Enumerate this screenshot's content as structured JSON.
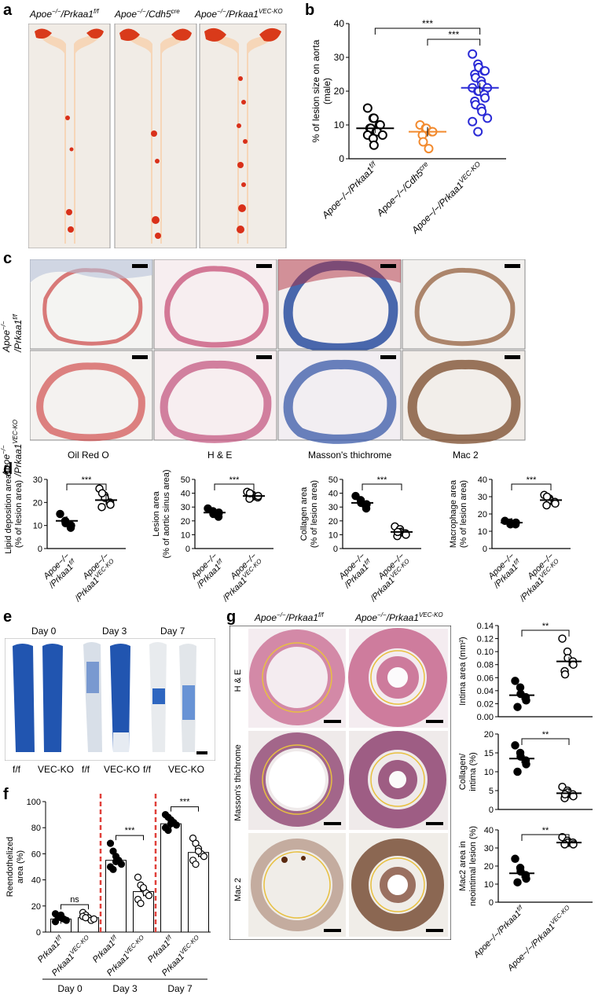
{
  "panel_labels": [
    "a",
    "b",
    "c",
    "d",
    "e",
    "f",
    "g"
  ],
  "a": {
    "captions": [
      {
        "pre": "Apoe",
        "sup": "−/−",
        "mid": "/Prkaa1",
        "sup2": "f/f"
      },
      {
        "pre": "Apoe",
        "sup": "−/−",
        "mid": "/Cdh5",
        "sup2": "cre"
      },
      {
        "pre": "Apoe",
        "sup": "−/−",
        "mid": "/Prkaa1",
        "sup2": "VEC-KO"
      }
    ]
  },
  "c": {
    "row_labels": [
      {
        "pre": "Apoe",
        "sup": "−/−",
        "line2": "/Prkaa1",
        "sup2": "f/f"
      },
      {
        "pre": "Apoe",
        "sup": "−/−",
        "line2": "/Prkaa1",
        "sup2": "VEC-KO"
      }
    ],
    "col_labels": [
      "Oil Red O",
      "H & E",
      "Masson's thichrome",
      "Mac 2"
    ]
  },
  "e": {
    "day_labels": [
      "Day 0",
      "Day 3",
      "Day 7"
    ],
    "genotype_labels": [
      "f/f",
      "VEC-KO",
      "f/f",
      "VEC-KO",
      "f/f",
      "VEC-KO"
    ]
  },
  "g": {
    "col_labels": [
      {
        "pre": "Apoe",
        "sup": "−/−",
        "mid": "/Prkaa1",
        "sup2": "f/f"
      },
      {
        "pre": "Apoe",
        "sup": "−/−",
        "mid": "/Prkaa1",
        "sup2": "VEC-KO"
      }
    ],
    "row_labels": [
      "H & E",
      "Masson's thichrome",
      "Mac 2"
    ]
  },
  "colors": {
    "black": "#000000",
    "orange": "#f28a2e",
    "blue": "#2b2bd6",
    "red_dash": "#e0403a"
  },
  "chart_data": [
    {
      "id": "b",
      "type": "scatter",
      "ylabel": "% of lesion size on aorta (male)",
      "ylim": [
        0,
        40
      ],
      "yticks": [
        0,
        10,
        20,
        30,
        40
      ],
      "categories": [
        "Apoe−/−/Prkaa1f/f",
        "Apoe−/−/Cdh5cre",
        "Apoe−/−/Prkaa1VEC-KO"
      ],
      "series": [
        {
          "values": [
            15,
            12,
            12,
            10,
            10,
            9,
            9,
            8,
            8,
            7,
            7,
            6,
            4
          ],
          "mean": 9,
          "color": "#000000"
        },
        {
          "values": [
            10,
            9,
            9,
            8,
            8,
            7,
            5,
            3
          ],
          "mean": 8,
          "color": "#f28a2e"
        },
        {
          "values": [
            31,
            28,
            27,
            26,
            26,
            25,
            24,
            23,
            22,
            21,
            21,
            20,
            20,
            19,
            18,
            17,
            16,
            15,
            14,
            12,
            11,
            8
          ],
          "mean": 21,
          "color": "#2b2bd6"
        }
      ],
      "significance": [
        {
          "from": 0,
          "to": 2,
          "label": "***"
        },
        {
          "from": 1,
          "to": 2,
          "label": "***"
        }
      ]
    },
    {
      "id": "d1",
      "type": "scatter",
      "ylabel": "Lipid deposition area (% of lesion area)",
      "ylim": [
        0,
        30
      ],
      "yticks": [
        0,
        10,
        20,
        30
      ],
      "categories": [
        "Apoe−/− /Prkaa1f/f",
        "Apoe−/− /Prkaa1VEC-KO"
      ],
      "series": [
        {
          "values": [
            15,
            12,
            11,
            9,
            10
          ],
          "mean": 12,
          "filled": true
        },
        {
          "values": [
            26,
            23,
            22,
            20,
            19,
            18,
            24
          ],
          "mean": 21,
          "filled": false
        }
      ],
      "significance": [
        {
          "from": 0,
          "to": 1,
          "label": "***"
        }
      ]
    },
    {
      "id": "d2",
      "type": "scatter",
      "ylabel": "Lesion area (% of aortic sinus area)",
      "ylim": [
        0,
        50
      ],
      "yticks": [
        0,
        10,
        20,
        30,
        40,
        50
      ],
      "categories": [
        "Apoe−/− /Prkaa1f/f",
        "Apoe−/− /Prkaa1VEC-KO"
      ],
      "series": [
        {
          "values": [
            29,
            27,
            25,
            23,
            26
          ],
          "mean": 26,
          "filled": true
        },
        {
          "values": [
            41,
            39,
            38,
            37,
            38,
            36,
            40
          ],
          "mean": 38,
          "filled": false
        }
      ],
      "significance": [
        {
          "from": 0,
          "to": 1,
          "label": "***"
        }
      ]
    },
    {
      "id": "d3",
      "type": "scatter",
      "ylabel": "Collagen area (% of lesion area)",
      "ylim": [
        0,
        50
      ],
      "yticks": [
        0,
        10,
        20,
        30,
        40,
        50
      ],
      "categories": [
        "Apoe−/− /Prkaa1f/f",
        "Apoe−/− /Prkaa1VEC-KO"
      ],
      "series": [
        {
          "values": [
            38,
            35,
            33,
            29,
            32
          ],
          "mean": 33,
          "filled": true
        },
        {
          "values": [
            16,
            14,
            12,
            11,
            10,
            9,
            12
          ],
          "mean": 12,
          "filled": false
        }
      ],
      "significance": [
        {
          "from": 0,
          "to": 1,
          "label": "***"
        }
      ]
    },
    {
      "id": "d4",
      "type": "scatter",
      "ylabel": "Macrophage area (% of lesion area)",
      "ylim": [
        0,
        40
      ],
      "yticks": [
        0,
        10,
        20,
        30,
        40
      ],
      "categories": [
        "Apoe−/− /Prkaa1f/f",
        "Apoe−/− /Prkaa1VEC-KO"
      ],
      "series": [
        {
          "values": [
            16,
            15,
            14,
            14,
            15
          ],
          "mean": 15,
          "filled": true
        },
        {
          "values": [
            31,
            29,
            28,
            27,
            26,
            25,
            30
          ],
          "mean": 28,
          "filled": false
        }
      ],
      "significance": [
        {
          "from": 0,
          "to": 1,
          "label": "***"
        }
      ]
    },
    {
      "id": "f",
      "type": "bar",
      "ylabel": "Reendothelized area (%)",
      "ylim": [
        0,
        100
      ],
      "yticks": [
        0,
        20,
        40,
        60,
        80,
        100
      ],
      "categories": [
        "Prkaa1f/f",
        "Prkaa1VEC-KO",
        "Prkaa1f/f",
        "Prkaa1VEC-KO",
        "Prkaa1f/f",
        "Prkaa1VEC-KO"
      ],
      "groups": [
        "Day 0",
        "Day 3",
        "Day 7"
      ],
      "values": [
        10,
        11,
        55,
        31,
        83,
        61
      ],
      "points": [
        [
          14,
          12,
          11,
          10,
          9,
          8,
          12,
          13
        ],
        [
          15,
          13,
          11,
          9,
          10,
          12,
          11
        ],
        [
          68,
          62,
          58,
          55,
          52,
          50,
          48,
          54
        ],
        [
          42,
          36,
          33,
          30,
          28,
          25,
          22,
          34
        ],
        [
          90,
          88,
          86,
          84,
          82,
          80,
          78,
          83
        ],
        [
          72,
          68,
          64,
          60,
          58,
          55,
          52,
          62
        ]
      ],
      "filled": [
        true,
        false,
        true,
        false,
        true,
        false
      ],
      "significance": [
        {
          "from": 0,
          "to": 1,
          "label": "ns"
        },
        {
          "from": 2,
          "to": 3,
          "label": "***"
        },
        {
          "from": 4,
          "to": 5,
          "label": "***"
        }
      ]
    },
    {
      "id": "g1",
      "type": "scatter",
      "ylabel": "Intima area (mm²)",
      "ylim": [
        0,
        0.14
      ],
      "yticks": [
        "0.00",
        "0.02",
        "0.04",
        "0.06",
        "0.08",
        "0.10",
        "0.12",
        "0.14"
      ],
      "categories": [
        "Apoe−/−/Prkaa1f/f",
        "Apoe−/−/Prkaa1VEC-KO"
      ],
      "series": [
        {
          "values": [
            0.055,
            0.045,
            0.035,
            0.03,
            0.025,
            0.015
          ],
          "mean": 0.033,
          "filled": true
        },
        {
          "values": [
            0.12,
            0.1,
            0.09,
            0.085,
            0.08,
            0.07,
            0.065
          ],
          "mean": 0.085,
          "filled": false
        }
      ],
      "significance": [
        {
          "from": 0,
          "to": 1,
          "label": "**"
        }
      ]
    },
    {
      "id": "g2",
      "type": "scatter",
      "ylabel": "Collagen/ intima (%)",
      "ylim": [
        0,
        20
      ],
      "yticks": [
        0,
        5,
        10,
        15,
        20
      ],
      "categories": [
        "Apoe−/−/Prkaa1f/f",
        "Apoe−/−/Prkaa1VEC-KO"
      ],
      "series": [
        {
          "values": [
            17,
            15,
            14,
            13,
            12,
            10
          ],
          "mean": 13.5,
          "filled": true
        },
        {
          "values": [
            6,
            5,
            4.5,
            4,
            3.5,
            3,
            4
          ],
          "mean": 4.3,
          "filled": false
        }
      ],
      "significance": [
        {
          "from": 0,
          "to": 1,
          "label": "**"
        }
      ]
    },
    {
      "id": "g3",
      "type": "scatter",
      "ylabel": "Mac2 area in neointimal lesion (%)",
      "ylim": [
        0,
        40
      ],
      "yticks": [
        0,
        10,
        20,
        30,
        40
      ],
      "categories": [
        "Apoe−/−/Prkaa1f/f",
        "Apoe−/−/Prkaa1VEC-KO"
      ],
      "series": [
        {
          "values": [
            24,
            19,
            17,
            15,
            13,
            11
          ],
          "mean": 16,
          "filled": true
        },
        {
          "values": [
            36,
            34,
            33,
            33,
            32,
            32
          ],
          "mean": 33,
          "filled": false
        }
      ],
      "significance": [
        {
          "from": 0,
          "to": 1,
          "label": "**"
        }
      ]
    }
  ]
}
